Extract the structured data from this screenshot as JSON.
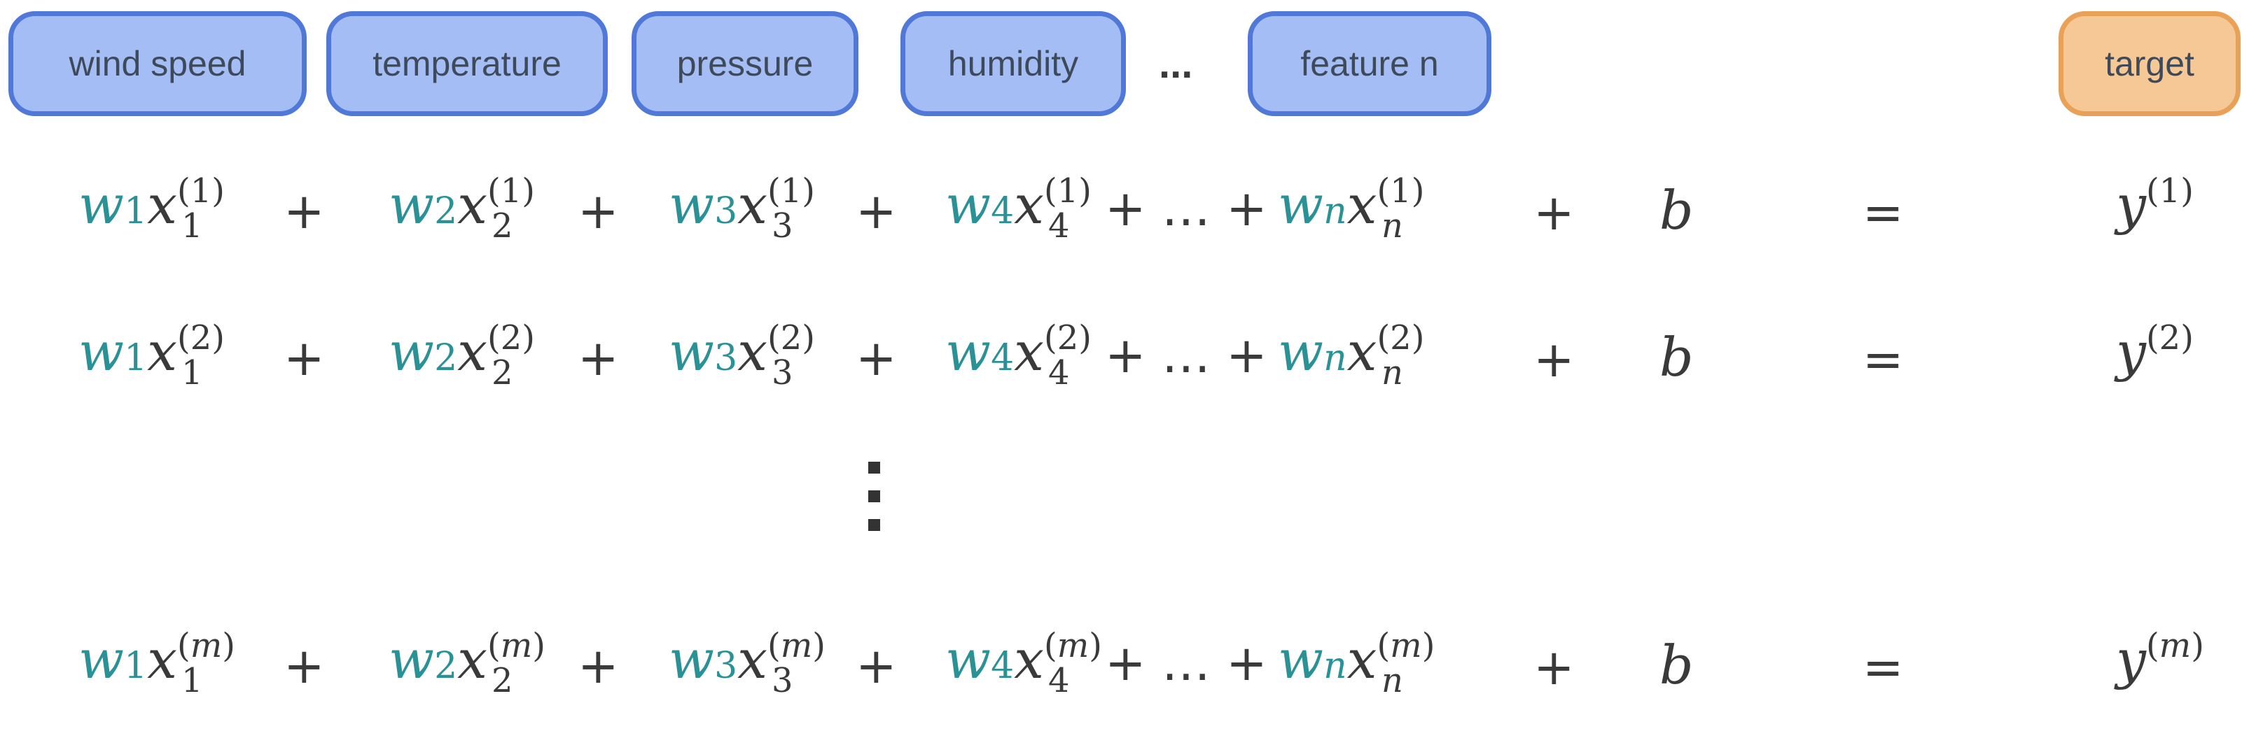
{
  "features": [
    "wind speed",
    "temperature",
    "pressure",
    "humidity",
    "feature n"
  ],
  "ellipsis": "...",
  "target_label": "target",
  "rows": [
    {
      "sup": "(1)",
      "sup_italic": false,
      "y": "y",
      "y_sup": "(1)"
    },
    {
      "sup": "(2)",
      "sup_italic": false,
      "y": "y",
      "y_sup": "(2)"
    },
    {
      "sup": "(m)",
      "sup_italic": true,
      "y": "y",
      "y_sup": "(m)"
    }
  ],
  "symbols": {
    "w": "w",
    "x": "x",
    "b": "b",
    "plus": "+",
    "equals": "=",
    "dots": "…",
    "subs": [
      "1",
      "2",
      "3",
      "4",
      "n"
    ]
  },
  "colors": {
    "feature_fill": "#a4bdf5",
    "feature_border": "#4f78d8",
    "target_fill": "#f6c895",
    "target_border": "#e9a157",
    "weight_color": "#2a9196"
  }
}
